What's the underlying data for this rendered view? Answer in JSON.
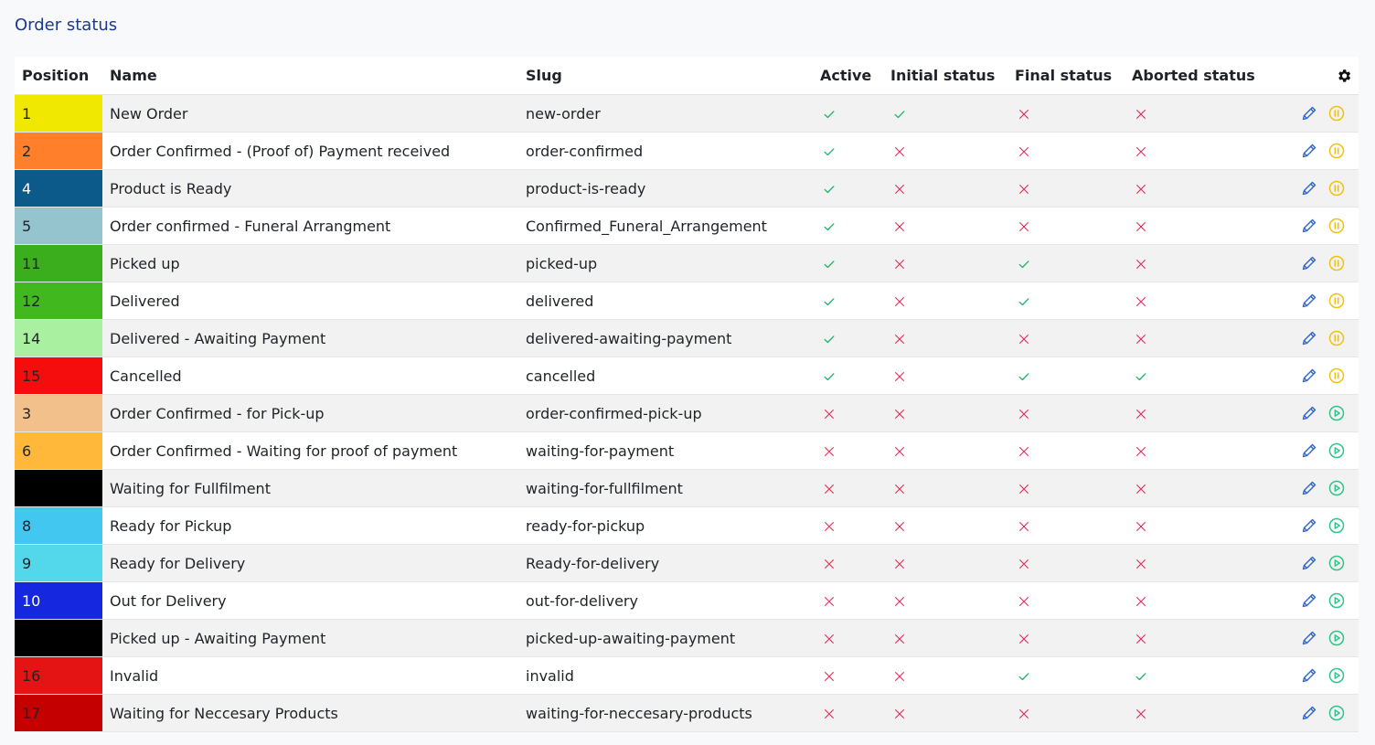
{
  "page": {
    "title": "Order status"
  },
  "table": {
    "headers": {
      "position": "Position",
      "name": "Name",
      "slug": "Slug",
      "active": "Active",
      "initial": "Initial status",
      "final": "Final status",
      "aborted": "Aborted status"
    },
    "icons": {
      "settings": "gear-icon",
      "edit": "pencil-icon",
      "pause": "pause-circle-icon",
      "play": "play-circle-icon",
      "yes": "check-icon",
      "no": "x-icon"
    },
    "colors": {
      "check": "#21b36b",
      "cross": "#e0365c",
      "edit": "#2f64c8",
      "pause": "#f0c20e",
      "play": "#2fc48a"
    },
    "rows": [
      {
        "position": "1",
        "color": "#f0e800",
        "text_color": "#1f2328",
        "name": "New Order",
        "slug": "new-order",
        "active": true,
        "initial": true,
        "final": false,
        "aborted": false,
        "action": "pause"
      },
      {
        "position": "2",
        "color": "#ff7f2a",
        "text_color": "#1f2328",
        "name": "Order Confirmed - (Proof of) Payment received",
        "slug": "order-confirmed",
        "active": true,
        "initial": false,
        "final": false,
        "aborted": false,
        "action": "pause"
      },
      {
        "position": "4",
        "color": "#0b5a8a",
        "text_color": "#ffffff",
        "name": "Product is Ready",
        "slug": "product-is-ready",
        "active": true,
        "initial": false,
        "final": false,
        "aborted": false,
        "action": "pause"
      },
      {
        "position": "5",
        "color": "#95c4cf",
        "text_color": "#1f2328",
        "name": "Order confirmed - Funeral Arrangment",
        "slug": "Confirmed_Funeral_Arrangement",
        "active": true,
        "initial": false,
        "final": false,
        "aborted": false,
        "action": "pause"
      },
      {
        "position": "11",
        "color": "#3aae1c",
        "text_color": "#1f2328",
        "name": "Picked up",
        "slug": "picked-up",
        "active": true,
        "initial": false,
        "final": true,
        "aborted": false,
        "action": "pause"
      },
      {
        "position": "12",
        "color": "#40b81e",
        "text_color": "#1f2328",
        "name": "Delivered",
        "slug": "delivered",
        "active": true,
        "initial": false,
        "final": true,
        "aborted": false,
        "action": "pause"
      },
      {
        "position": "14",
        "color": "#a9f0a0",
        "text_color": "#1f2328",
        "name": "Delivered - Awaiting Payment",
        "slug": "delivered-awaiting-payment",
        "active": true,
        "initial": false,
        "final": false,
        "aborted": false,
        "action": "pause"
      },
      {
        "position": "15",
        "color": "#f50c0c",
        "text_color": "#1f2328",
        "name": "Cancelled",
        "slug": "cancelled",
        "active": true,
        "initial": false,
        "final": true,
        "aborted": true,
        "action": "pause"
      },
      {
        "position": "3",
        "color": "#f2c08a",
        "text_color": "#1f2328",
        "name": "Order Confirmed - for Pick-up",
        "slug": "order-confirmed-pick-up",
        "active": false,
        "initial": false,
        "final": false,
        "aborted": false,
        "action": "play"
      },
      {
        "position": "6",
        "color": "#ffb83a",
        "text_color": "#1f2328",
        "name": "Order Confirmed - Waiting for proof of payment",
        "slug": "waiting-for-payment",
        "active": false,
        "initial": false,
        "final": false,
        "aborted": false,
        "action": "play"
      },
      {
        "position": "",
        "color": "#000000",
        "text_color": "#ffffff",
        "name": "Waiting for Fullfilment",
        "slug": "waiting-for-fullfilment",
        "active": false,
        "initial": false,
        "final": false,
        "aborted": false,
        "action": "play"
      },
      {
        "position": "8",
        "color": "#42c8f0",
        "text_color": "#1f2328",
        "name": "Ready for Pickup",
        "slug": "ready-for-pickup",
        "active": false,
        "initial": false,
        "final": false,
        "aborted": false,
        "action": "play"
      },
      {
        "position": "9",
        "color": "#52d8ea",
        "text_color": "#1f2328",
        "name": "Ready for Delivery",
        "slug": "Ready-for-delivery",
        "active": false,
        "initial": false,
        "final": false,
        "aborted": false,
        "action": "play"
      },
      {
        "position": "10",
        "color": "#1528e0",
        "text_color": "#ffffff",
        "name": "Out for Delivery",
        "slug": "out-for-delivery",
        "active": false,
        "initial": false,
        "final": false,
        "aborted": false,
        "action": "play"
      },
      {
        "position": "",
        "color": "#000000",
        "text_color": "#ffffff",
        "name": "Picked up - Awaiting Payment",
        "slug": "picked-up-awaiting-payment",
        "active": false,
        "initial": false,
        "final": false,
        "aborted": false,
        "action": "play"
      },
      {
        "position": "16",
        "color": "#e41414",
        "text_color": "#1f2328",
        "name": "Invalid",
        "slug": "invalid",
        "active": false,
        "initial": false,
        "final": true,
        "aborted": true,
        "action": "play"
      },
      {
        "position": "17",
        "color": "#c40000",
        "text_color": "#1f2328",
        "name": "Waiting for Neccesary Products",
        "slug": "waiting-for-neccesary-products",
        "active": false,
        "initial": false,
        "final": false,
        "aborted": false,
        "action": "play"
      }
    ]
  }
}
